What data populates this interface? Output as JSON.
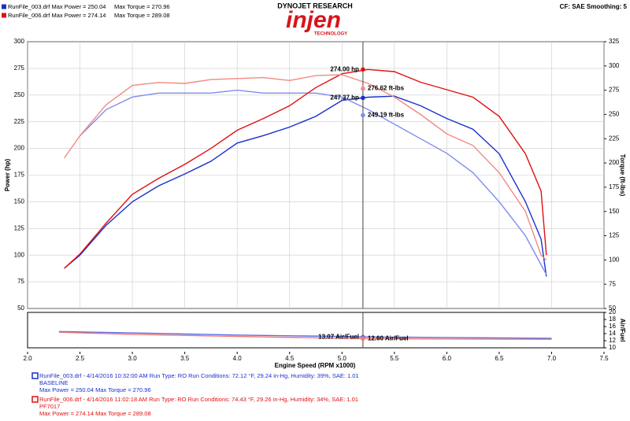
{
  "header": {
    "runs": [
      {
        "label": "RunFile_003.drf Max Power = 250.04",
        "torque": "Max Torque = 270.96",
        "color": "#1a2fcc"
      },
      {
        "label": "RunFile_006.drf Max Power = 274.14",
        "torque": "Max Torque = 289.08",
        "color": "#e01010"
      }
    ],
    "brand": "DYNOJET RESEARCH",
    "logo": "injen",
    "logo_sub": "TECHNOLOGY",
    "settings": "CF: SAE  Smoothing: 5"
  },
  "footer": [
    {
      "color": "#1a2fcc",
      "lines": [
        "RunFile_003.drf - 4/14/2016 10:32:00 AM  Run Type: RO  Run Conditions: 72.12 °F, 29.24 in-Hg,  Humidity:  39%, SAE: 1.01",
        "BASELINE",
        "Max Power = 250.04   Max Torque = 270.96"
      ]
    },
    {
      "color": "#e01010",
      "lines": [
        "RunFile_006.drf - 4/14/2016 11:02:18 AM  Run Type: RO  Run Conditions: 74.43 °F, 29.26 in-Hg,  Humidity:  34%, SAE: 1.01",
        "PF7017",
        "Max Power = 274.14   Max Torque = 289.08"
      ]
    }
  ],
  "chart_data": [
    {
      "type": "line",
      "xlabel": "Engine Speed (RPM x1000)",
      "ylabel": "Power (hp)",
      "y2label": "Torque (ft-lbs)",
      "x": [
        2.35,
        2.5,
        2.75,
        3.0,
        3.25,
        3.5,
        3.75,
        4.0,
        4.25,
        4.5,
        4.75,
        5.0,
        5.25,
        5.5,
        5.75,
        6.0,
        6.25,
        6.5,
        6.75,
        6.9,
        6.95
      ],
      "xlim": [
        2,
        7.5
      ],
      "xticks": [
        {
          "value": 2,
          "label": "2.0"
        },
        2.5,
        {
          "value": 3,
          "label": "3.0"
        },
        3.5,
        {
          "value": 4,
          "label": "4.0"
        },
        4.5,
        {
          "value": 5,
          "label": "5.0"
        },
        5.5,
        {
          "value": 6,
          "label": "6.0"
        },
        6.5,
        {
          "value": 7,
          "label": "7.0"
        },
        7.5
      ],
      "ylim": [
        50,
        300
      ],
      "yticks": [
        50,
        75,
        100,
        125,
        150,
        175,
        200,
        225,
        250,
        275,
        300
      ],
      "y2lim": [
        50,
        325
      ],
      "y2ticks": [
        50,
        75,
        100,
        125,
        150,
        175,
        200,
        225,
        250,
        275,
        300,
        325
      ],
      "grid": true,
      "series": [
        {
          "name": "RunFile_003 Power",
          "color": "#1a2fcc",
          "values": [
            87.6,
            100,
            128,
            150,
            165,
            176,
            188,
            205,
            212,
            220,
            230,
            245,
            248,
            249,
            240,
            228,
            218,
            195,
            150,
            115,
            80
          ]
        },
        {
          "name": "RunFile_003 Torque",
          "color": "#7f8cf0",
          "axis": "y2",
          "values": [
            null,
            228,
            255,
            268,
            272,
            272,
            272,
            275,
            272,
            272,
            272,
            268,
            255,
            240,
            225,
            210,
            190,
            160,
            125,
            95,
            85
          ]
        },
        {
          "name": "RunFile_006 Power",
          "color": "#e01010",
          "values": [
            87.6,
            101,
            130,
            157,
            172,
            185,
            200,
            217,
            228,
            240,
            257,
            270,
            274,
            272,
            262,
            255,
            248,
            230,
            195,
            160,
            100
          ]
        },
        {
          "name": "RunFile_006 Torque",
          "color": "#f08a84",
          "axis": "y2",
          "values": [
            205,
            228,
            260,
            280,
            283,
            282,
            286,
            287,
            288,
            285,
            290,
            291,
            282,
            268,
            250,
            230,
            218,
            190,
            150,
            105,
            100
          ]
        }
      ],
      "cursor": {
        "x": 5.2,
        "readouts": [
          {
            "series": 2,
            "value": 274.0,
            "label": "274.00 hp"
          },
          {
            "series": 3,
            "value": 276.62,
            "label": "276.62 ft-lbs"
          },
          {
            "series": 0,
            "value": 247.37,
            "label": "247.37 hp"
          },
          {
            "series": 1,
            "value": 249.19,
            "label": "249.19 ft-lbs"
          }
        ]
      }
    },
    {
      "type": "line",
      "y2label": "Air/Fuel",
      "x": [
        2.3,
        3.0,
        4.0,
        5.0,
        5.2,
        6.0,
        7.0
      ],
      "xlim": [
        2,
        7.5
      ],
      "y2lim": [
        10,
        20
      ],
      "y2ticks": [
        10,
        12,
        14,
        16,
        18,
        20
      ],
      "series": [
        {
          "name": "RunFile_003 Air/Fuel",
          "color": "#5a6ae8",
          "axis": "y2",
          "values": [
            14.6,
            14.2,
            13.6,
            13.2,
            13.07,
            12.9,
            12.7
          ]
        },
        {
          "name": "RunFile_006 Air/Fuel",
          "color": "#f07a74",
          "axis": "y2",
          "values": [
            14.4,
            13.8,
            13.2,
            12.7,
            12.6,
            12.5,
            12.4
          ]
        }
      ],
      "cursor": {
        "x": 5.2,
        "readouts": [
          {
            "series": 0,
            "value": 13.07,
            "label": "13.07 Air/Fuel"
          },
          {
            "series": 1,
            "value": 12.6,
            "label": "12.60 Air/Fuel"
          }
        ]
      }
    }
  ]
}
